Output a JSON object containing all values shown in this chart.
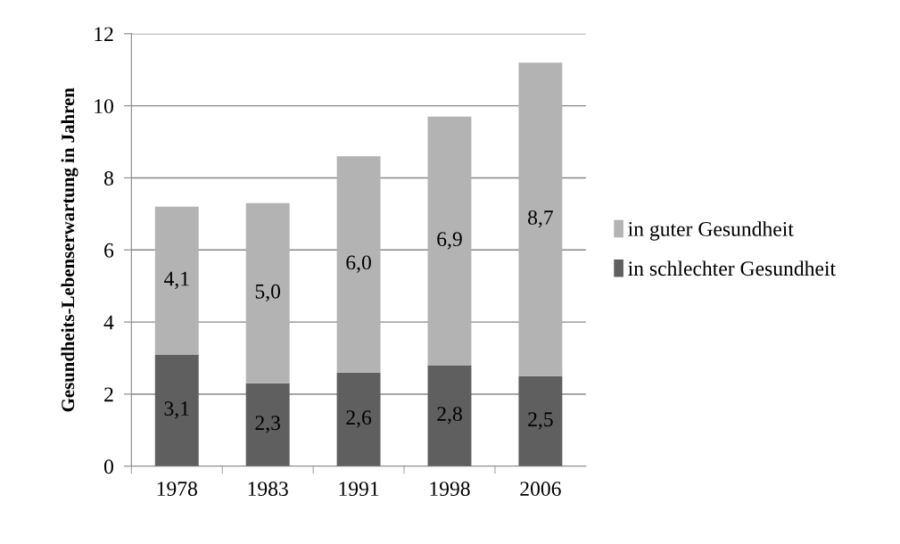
{
  "chart_data": {
    "type": "bar",
    "stacked": true,
    "ylabel": "Gesundheits-Lebenserwartung in Jahren",
    "categories": [
      "1978",
      "1983",
      "1991",
      "1998",
      "2006"
    ],
    "series": [
      {
        "name": "in schlechter Gesundheit",
        "color": "#5f5f5f",
        "values": [
          3.1,
          2.3,
          2.6,
          2.8,
          2.5
        ],
        "value_labels": [
          "3,1",
          "2,3",
          "2,6",
          "2,8",
          "2,5"
        ]
      },
      {
        "name": "in guter Gesundheit",
        "color": "#b3b3b3",
        "values": [
          4.1,
          5.0,
          6.0,
          6.9,
          8.7
        ],
        "value_labels": [
          "4,1",
          "5,0",
          "6,0",
          "6,9",
          "8,7"
        ]
      }
    ],
    "ylim": [
      0,
      12
    ],
    "yticks": [
      0,
      2,
      4,
      6,
      8,
      10,
      12
    ],
    "grid": "y",
    "legend": "right"
  }
}
